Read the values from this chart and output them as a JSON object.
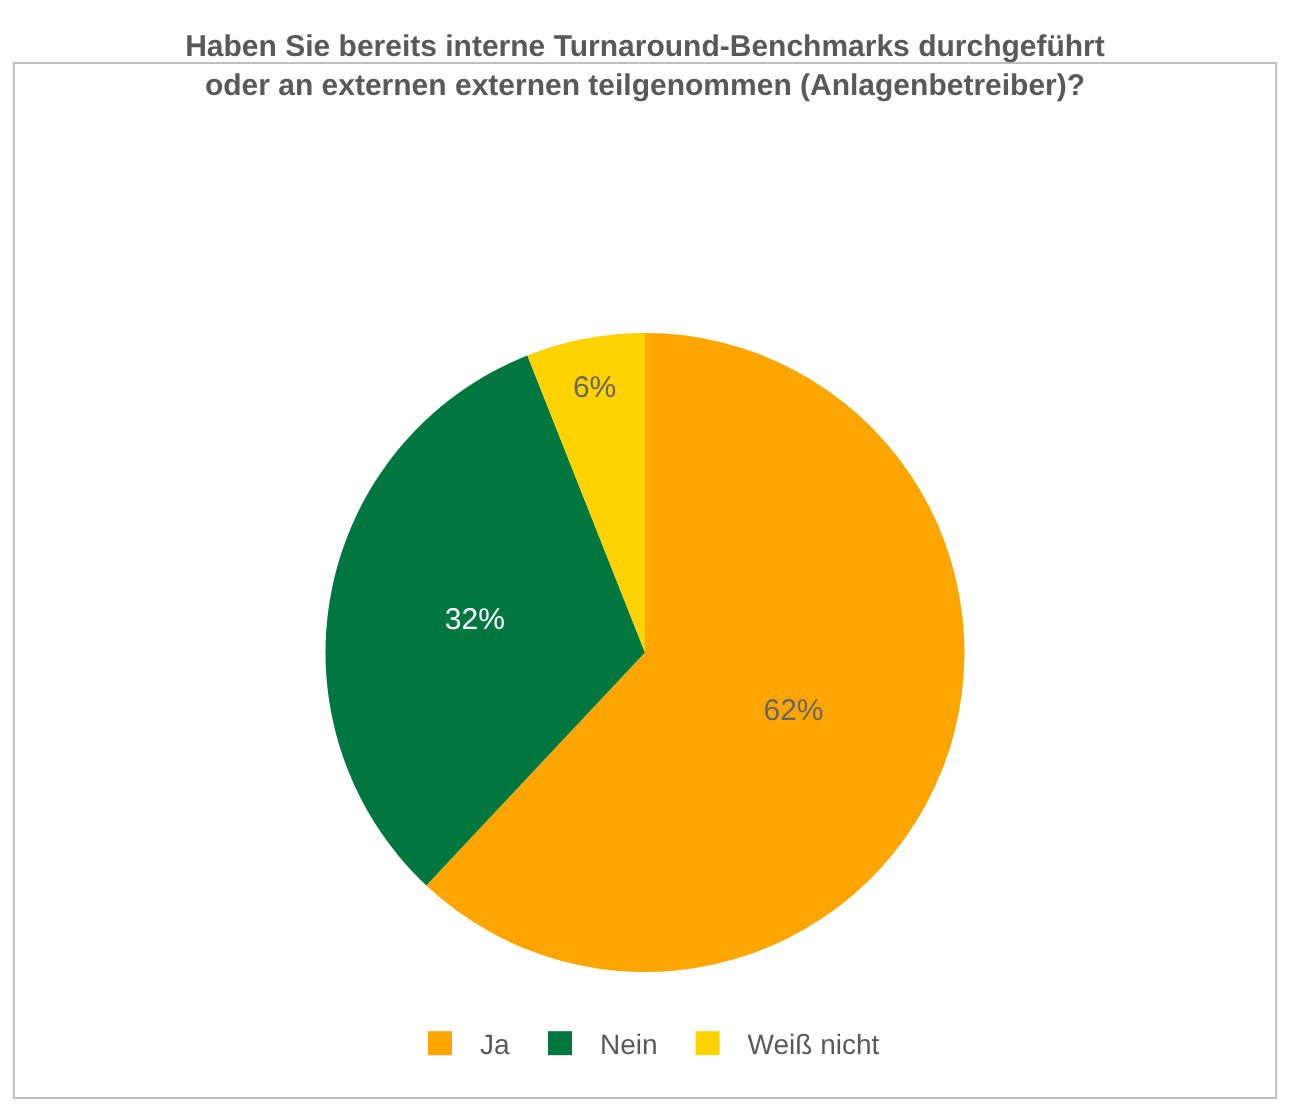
{
  "chart_data": {
    "type": "pie",
    "title": "Haben Sie bereits interne Turnaround-Benchmarks durchgeführt\noder an externen externen teilgenommen (Anlagenbetreiber)?",
    "categories": [
      "Ja",
      "Nein",
      "Weiß nicht"
    ],
    "values": [
      62,
      32,
      6
    ],
    "value_labels": [
      "62%",
      "32%",
      "6%"
    ],
    "colors": [
      "#ffa500",
      "#00773e",
      "#ffd200"
    ],
    "legend": "bottom"
  }
}
